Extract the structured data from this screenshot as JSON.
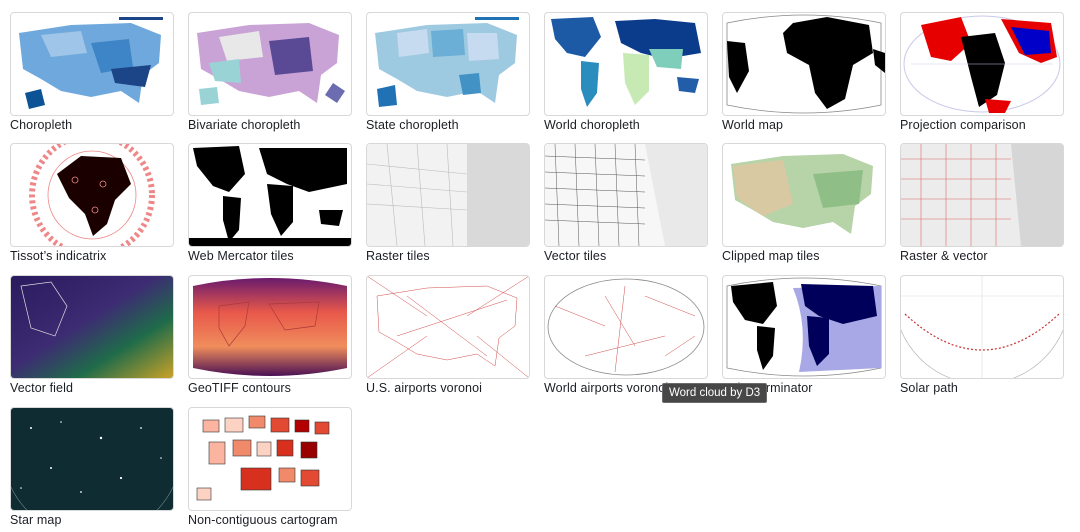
{
  "gallery": {
    "items": [
      {
        "label": "Choropleth",
        "thumb": "choropleth"
      },
      {
        "label": "Bivariate choropleth",
        "thumb": "bivariate"
      },
      {
        "label": "State choropleth",
        "thumb": "state"
      },
      {
        "label": "World choropleth",
        "thumb": "worldchoro"
      },
      {
        "label": "World map",
        "thumb": "worldmap"
      },
      {
        "label": "Projection comparison",
        "thumb": "projcomp"
      },
      {
        "label": "Tissot’s indicatrix",
        "thumb": "tissot"
      },
      {
        "label": "Web Mercator tiles",
        "thumb": "mercator"
      },
      {
        "label": "Raster tiles",
        "thumb": "raster"
      },
      {
        "label": "Vector tiles",
        "thumb": "vector"
      },
      {
        "label": "Clipped map tiles",
        "thumb": "clipped"
      },
      {
        "label": "Raster & vector",
        "thumb": "rastervec"
      },
      {
        "label": "Vector field",
        "thumb": "vfield"
      },
      {
        "label": "GeoTIFF contours",
        "thumb": "geotiff"
      },
      {
        "label": "U.S. airports voronoi",
        "thumb": "usvoronoi"
      },
      {
        "label": "World airports voronoi",
        "thumb": "worldvoronoi"
      },
      {
        "label": "Solar terminator",
        "thumb": "terminator"
      },
      {
        "label": "Solar path",
        "thumb": "solarpath"
      },
      {
        "label": "Star map",
        "thumb": "starmap"
      },
      {
        "label": "Non-contiguous cartogram",
        "thumb": "cartogram"
      }
    ]
  },
  "tooltip": {
    "text": "Word cloud by D3"
  },
  "colors": {
    "label": "#1b1e23",
    "border": "#d8d8d8",
    "tooltip_bg": "#474747"
  }
}
